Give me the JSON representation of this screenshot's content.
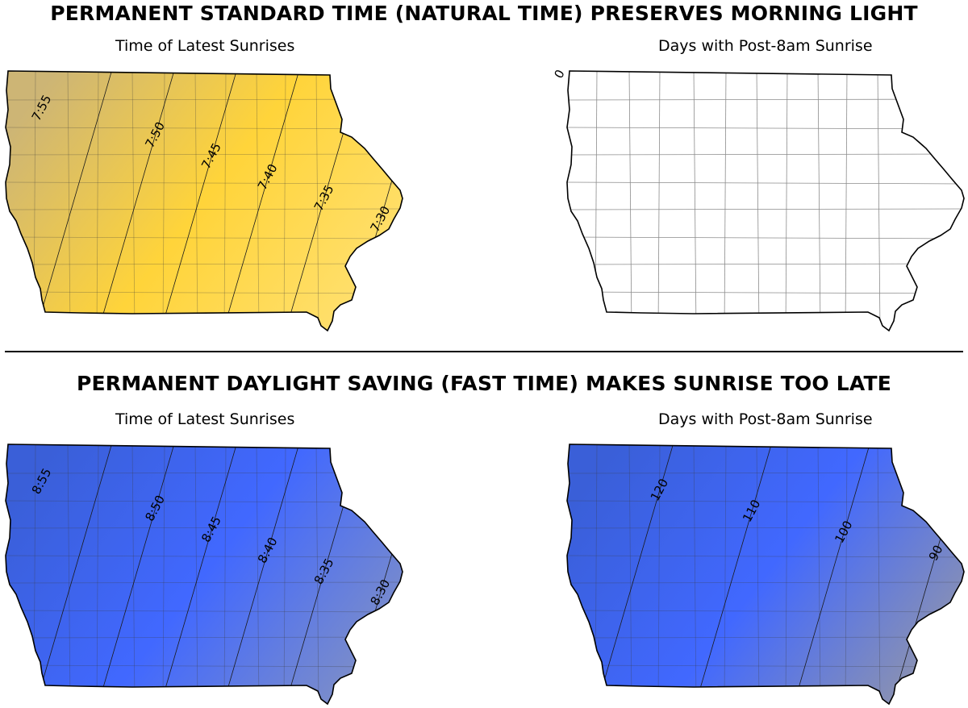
{
  "sections": [
    {
      "heading": "PERMANENT STANDARD TIME (NATURAL TIME) PRESERVES MORNING LIGHT",
      "left_title": "Time of Latest Sunrises",
      "right_title": "Days with Post-8am Sunrise",
      "left_colors": [
        "#cdb575",
        "#ffd43a",
        "#ffe070"
      ],
      "left_contours": [
        "7:55",
        "7:50",
        "7:45",
        "7:40",
        "7:35",
        "7:30"
      ],
      "right_contours": [
        "0"
      ]
    },
    {
      "heading": "PERMANENT DAYLIGHT SAVING (FAST TIME) MAKES SUNRISE TOO LATE",
      "left_title": "Time of Latest Sunrises",
      "right_title": "Days with Post-8am Sunrise",
      "left_colors": [
        "#3a5fd8",
        "#4168ff",
        "#7f8fc6"
      ],
      "right_colors": [
        "#3a5fd8",
        "#4168ff",
        "#8f94ad"
      ],
      "left_contours": [
        "8:55",
        "8:50",
        "8:45",
        "8:40",
        "8:35",
        "8:30"
      ],
      "right_contours": [
        "120",
        "110",
        "100",
        "90"
      ]
    }
  ]
}
